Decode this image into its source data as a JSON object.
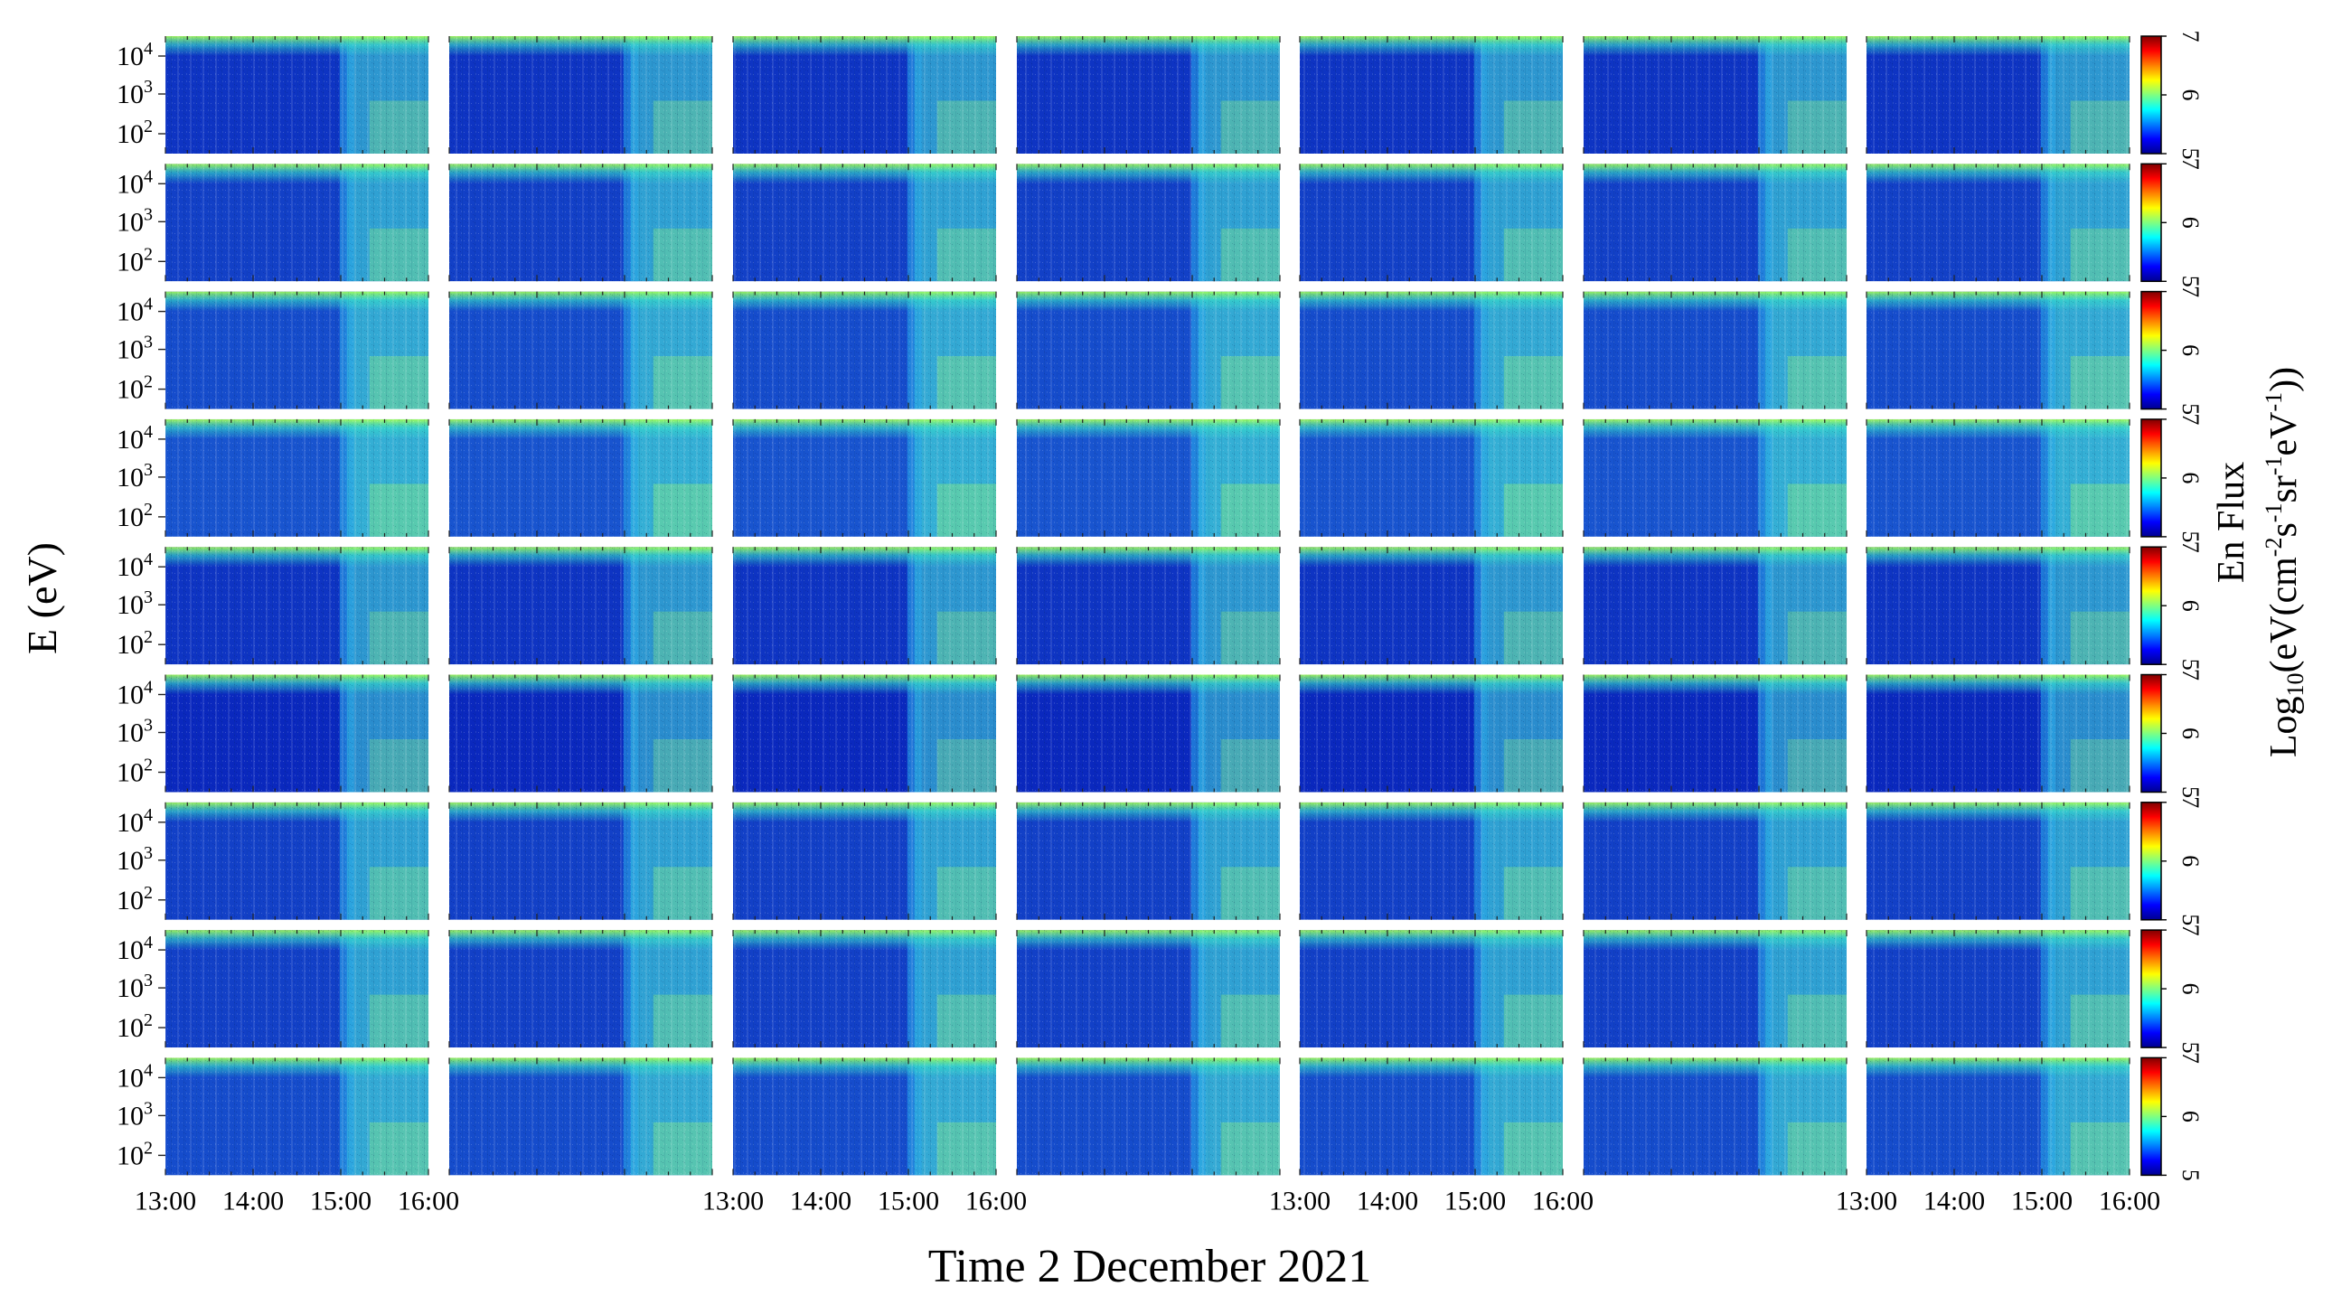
{
  "chart_data": {
    "type": "heatmap",
    "grid": {
      "rows": 9,
      "cols": 7
    },
    "x_tick_labels": [
      "13:00",
      "14:00",
      "15:00",
      "16:00"
    ],
    "x_ticks_shown_below_columns": [
      0,
      2,
      4,
      6
    ],
    "y_tick_labels": [
      {
        "base": "10",
        "exp": "4"
      },
      {
        "base": "10",
        "exp": "3"
      },
      {
        "base": "10",
        "exp": "2"
      }
    ],
    "xlabel": "Time 2 December 2021",
    "ylabel": "E  (eV)",
    "colorbar": {
      "label_line1": "En Flux",
      "label_line2_parts": [
        {
          "text": "Log",
          "style": "normal"
        },
        {
          "text": "10",
          "style": "sub"
        },
        {
          "text": "(eV(cm",
          "style": "normal"
        },
        {
          "text": "-2",
          "style": "sup"
        },
        {
          "text": "s",
          "style": "normal"
        },
        {
          "text": "-1",
          "style": "sup"
        },
        {
          "text": "sr",
          "style": "normal"
        },
        {
          "text": "-1",
          "style": "sup"
        },
        {
          "text": "eV",
          "style": "normal"
        },
        {
          "text": "-1",
          "style": "sup"
        },
        {
          "text": "))",
          "style": "normal"
        }
      ],
      "range": [
        5,
        7
      ],
      "tick_labels": [
        "5",
        "6",
        "7"
      ],
      "colormap": "jet",
      "colors": [
        "#00008f",
        "#0000ff",
        "#0080ff",
        "#00ffff",
        "#80ff80",
        "#ffff00",
        "#ff8000",
        "#ff0000",
        "#800000"
      ]
    }
  }
}
